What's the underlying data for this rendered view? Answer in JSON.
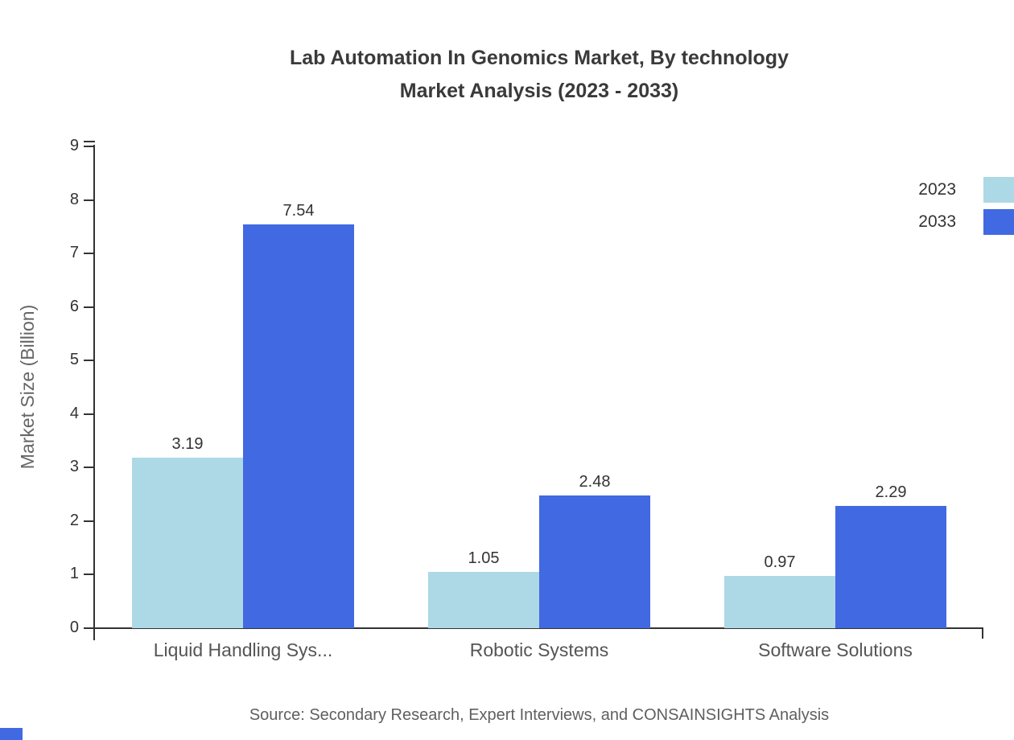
{
  "title": {
    "line1": "Lab Automation In Genomics Market, By technology",
    "line2": "Market Analysis (2023 - 2033)"
  },
  "source": "Source: Secondary Research, Expert Interviews, and CONSAINSIGHTS Analysis",
  "colors": {
    "series_2023": "#ADD8E6",
    "series_2033": "#4169E1",
    "axis": "#333333",
    "tick_text": "#333333",
    "category_text": "#555555",
    "value_text": "#333333",
    "title_text": "#3a3a3a",
    "source_text": "#5f5f5f",
    "ylabel_text": "#666666"
  },
  "chart_data": {
    "type": "bar",
    "title": "Lab Automation In Genomics Market, By technology Market Analysis (2023 - 2033)",
    "categories": [
      "Liquid Handling Sys...",
      "Robotic Systems",
      "Software Solutions"
    ],
    "series": [
      {
        "name": "2023",
        "color": "#ADD8E6",
        "values": [
          3.19,
          1.05,
          0.97
        ]
      },
      {
        "name": "2033",
        "color": "#4169E1",
        "values": [
          7.54,
          2.48,
          2.29
        ]
      }
    ],
    "xlabel": "",
    "ylabel": "Market Size (Billion)",
    "ylim": [
      0,
      9
    ],
    "yticks": [
      0,
      1,
      2,
      3,
      4,
      5,
      6,
      7,
      8,
      9
    ],
    "grid": false,
    "legend_position": "top-right",
    "value_labels": true
  }
}
